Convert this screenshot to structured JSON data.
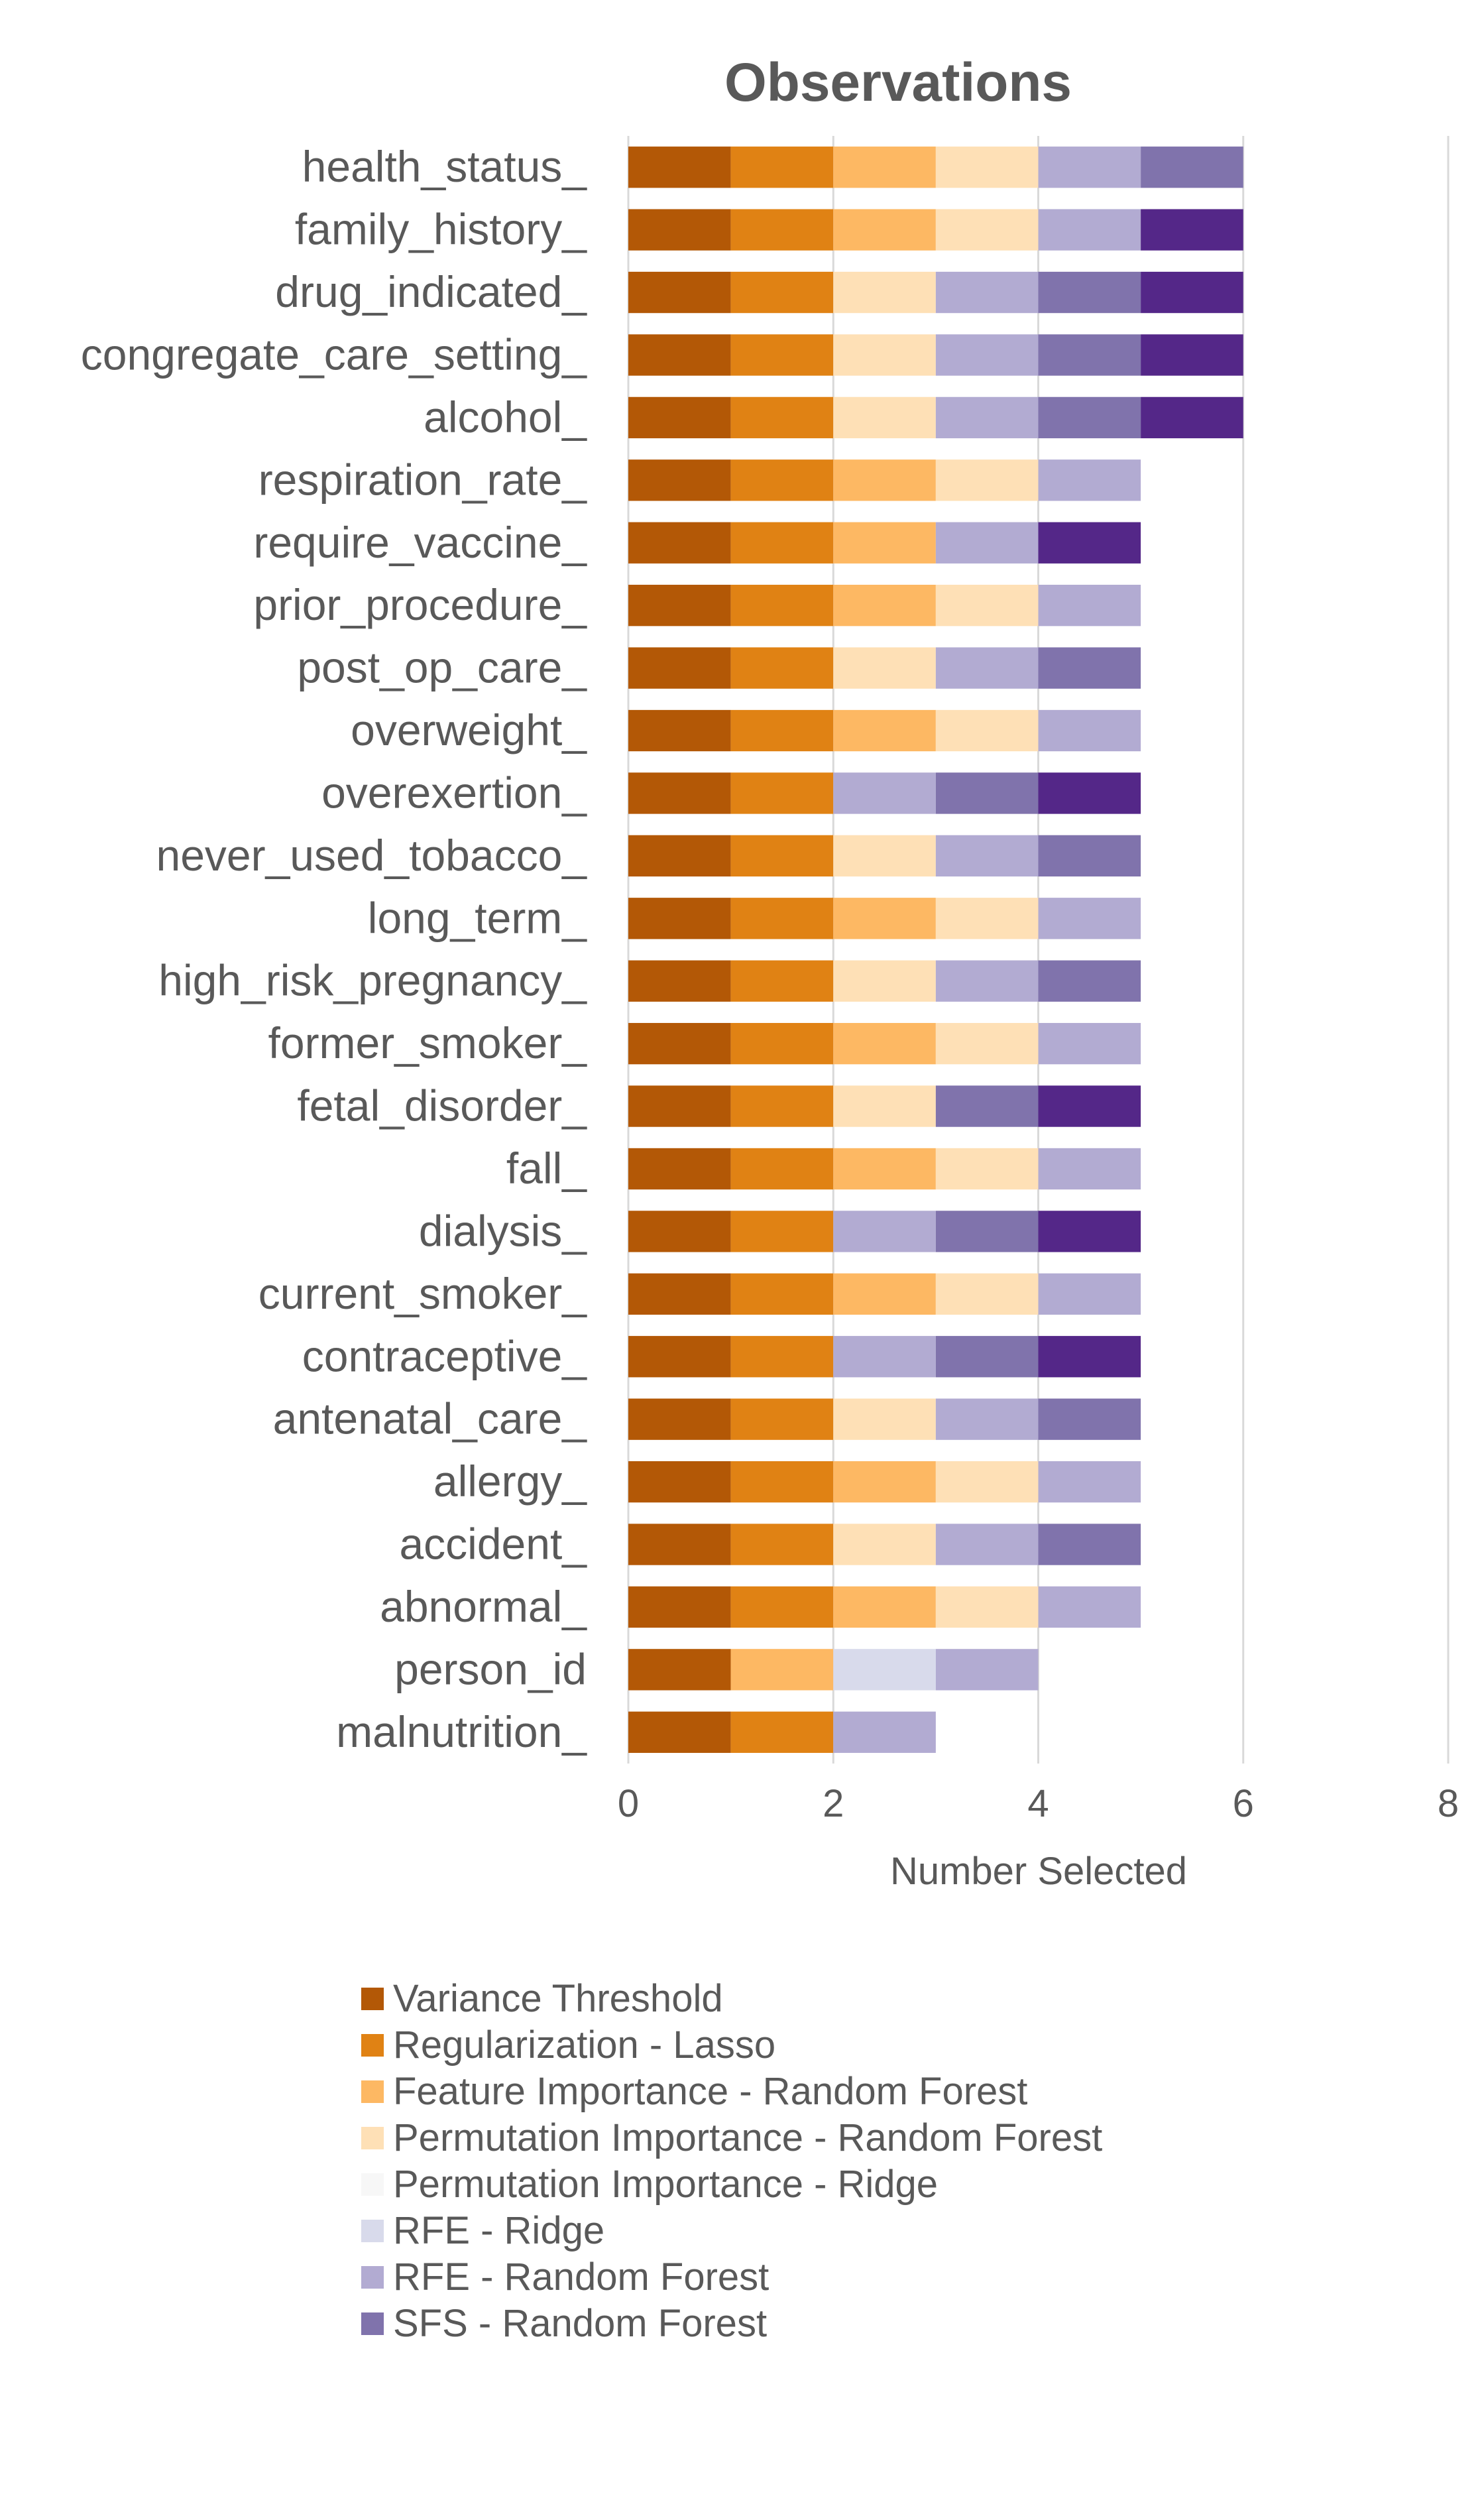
{
  "chart_data": {
    "type": "bar",
    "orientation": "horizontal",
    "stacked": true,
    "title": "Observations",
    "xlabel": "Number Selected",
    "ylabel": "",
    "xlim": [
      0,
      8
    ],
    "xticks": [
      "0",
      "2",
      "4",
      "6",
      "8"
    ],
    "grid": true,
    "legend_position": "bottom",
    "categories": [
      "health_status_",
      "family_history_",
      "drug_indicated_",
      "congregate_care_setting_",
      "alcohol_",
      "respiration_rate_",
      "require_vaccine_",
      "prior_procedure_",
      "post_op_care_",
      "overweight_",
      "overexertion_",
      "never_used_tobacco_",
      "long_term_",
      "high_risk_pregnancy_",
      "former_smoker_",
      "fetal_disorder_",
      "fall_",
      "dialysis_",
      "current_smoker_",
      "contraceptive_",
      "antenatal_care_",
      "allergy_",
      "accident_",
      "abnormal_",
      "person_id",
      "malnutrition_"
    ],
    "legend": [
      {
        "name": "Variance Threshold",
        "color": "#B35806"
      },
      {
        "name": "Regularization - Lasso",
        "color": "#E08214"
      },
      {
        "name": "Feature Importance - Random Forest",
        "color": "#FDB863"
      },
      {
        "name": "Permutation Importance - Random Forest",
        "color": "#FEE0B6"
      },
      {
        "name": "Permutation Importance - Ridge",
        "color": "#F7F7F7"
      },
      {
        "name": "RFE - Ridge",
        "color": "#D8DAEB"
      },
      {
        "name": "RFE - Random Forest",
        "color": "#B2ABD2"
      },
      {
        "name": "SFS - Random Forest",
        "color": "#8073AC"
      }
    ],
    "extra_segment_color": "#542788",
    "rows": [
      [
        "#B35806",
        "#E08214",
        "#FDB863",
        "#FEE0B6",
        "#B2ABD2",
        "#8073AC"
      ],
      [
        "#B35806",
        "#E08214",
        "#FDB863",
        "#FEE0B6",
        "#B2ABD2",
        "#542788"
      ],
      [
        "#B35806",
        "#E08214",
        "#FEE0B6",
        "#B2ABD2",
        "#8073AC",
        "#542788"
      ],
      [
        "#B35806",
        "#E08214",
        "#FEE0B6",
        "#B2ABD2",
        "#8073AC",
        "#542788"
      ],
      [
        "#B35806",
        "#E08214",
        "#FEE0B6",
        "#B2ABD2",
        "#8073AC",
        "#542788"
      ],
      [
        "#B35806",
        "#E08214",
        "#FDB863",
        "#FEE0B6",
        "#B2ABD2"
      ],
      [
        "#B35806",
        "#E08214",
        "#FDB863",
        "#B2ABD2",
        "#542788"
      ],
      [
        "#B35806",
        "#E08214",
        "#FDB863",
        "#FEE0B6",
        "#B2ABD2"
      ],
      [
        "#B35806",
        "#E08214",
        "#FEE0B6",
        "#B2ABD2",
        "#8073AC"
      ],
      [
        "#B35806",
        "#E08214",
        "#FDB863",
        "#FEE0B6",
        "#B2ABD2"
      ],
      [
        "#B35806",
        "#E08214",
        "#B2ABD2",
        "#8073AC",
        "#542788"
      ],
      [
        "#B35806",
        "#E08214",
        "#FEE0B6",
        "#B2ABD2",
        "#8073AC"
      ],
      [
        "#B35806",
        "#E08214",
        "#FDB863",
        "#FEE0B6",
        "#B2ABD2"
      ],
      [
        "#B35806",
        "#E08214",
        "#FEE0B6",
        "#B2ABD2",
        "#8073AC"
      ],
      [
        "#B35806",
        "#E08214",
        "#FDB863",
        "#FEE0B6",
        "#B2ABD2"
      ],
      [
        "#B35806",
        "#E08214",
        "#FEE0B6",
        "#8073AC",
        "#542788"
      ],
      [
        "#B35806",
        "#E08214",
        "#FDB863",
        "#FEE0B6",
        "#B2ABD2"
      ],
      [
        "#B35806",
        "#E08214",
        "#B2ABD2",
        "#8073AC",
        "#542788"
      ],
      [
        "#B35806",
        "#E08214",
        "#FDB863",
        "#FEE0B6",
        "#B2ABD2"
      ],
      [
        "#B35806",
        "#E08214",
        "#B2ABD2",
        "#8073AC",
        "#542788"
      ],
      [
        "#B35806",
        "#E08214",
        "#FEE0B6",
        "#B2ABD2",
        "#8073AC"
      ],
      [
        "#B35806",
        "#E08214",
        "#FDB863",
        "#FEE0B6",
        "#B2ABD2"
      ],
      [
        "#B35806",
        "#E08214",
        "#FEE0B6",
        "#B2ABD2",
        "#8073AC"
      ],
      [
        "#B35806",
        "#E08214",
        "#FDB863",
        "#FEE0B6",
        "#B2ABD2"
      ],
      [
        "#B35806",
        "#FDB863",
        "#D8DAEB",
        "#B2ABD2"
      ],
      [
        "#B35806",
        "#E08214",
        "#B2ABD2"
      ]
    ]
  }
}
